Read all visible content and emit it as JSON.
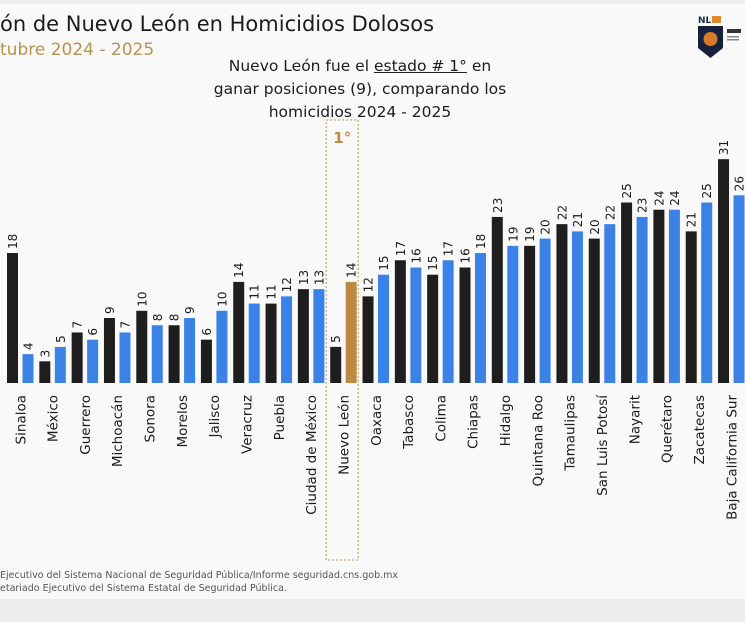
{
  "header": {
    "title": "ón de Nuevo León en Homicidios Dolosos",
    "subtitle": "tubre 2024 - 2025",
    "note_part1": "Nuevo León fue el ",
    "note_bold1": "estado # 1°",
    "note_part2": "  en ganar posiciones (9), comparando los homicidios 2024 - 2025"
  },
  "logo": {
    "text": "NL"
  },
  "highlight": {
    "label": "1°",
    "state": "Nuevo León"
  },
  "sources": [
    "Ejecutivo del Sistema Nacional de Seguridad Pública/Informe seguridad.cns.gob.mx",
    "etariado Ejecutivo del Sistema Estatal de Seguridad Pública."
  ],
  "chart_data": {
    "type": "bar",
    "categories": [
      "Sinaloa",
      "México",
      "Guerrero",
      "Michoacán",
      "Sonora",
      "Morelos",
      "Jalisco",
      "Veracruz",
      "Puebla",
      "Ciudad de México",
      "Nuevo León",
      "Oaxaca",
      "Tabasco",
      "Colima",
      "Chiapas",
      "Hidalgo",
      "Quintana Roo",
      "Tamaulipas",
      "San Luis Potosí",
      "Nayarit",
      "Querétaro",
      "Zacatecas",
      "Baja California Sur"
    ],
    "series": [
      {
        "values": [
          18,
          3,
          7,
          9,
          10,
          8,
          6,
          14,
          11,
          13,
          5,
          12,
          17,
          15,
          16,
          23,
          19,
          22,
          20,
          25,
          24,
          21,
          31
        ],
        "color": "#1e1e1e"
      },
      {
        "values": [
          4,
          5,
          6,
          7,
          8,
          9,
          10,
          11,
          12,
          13,
          14,
          15,
          16,
          17,
          18,
          19,
          20,
          21,
          22,
          23,
          24,
          25,
          26
        ],
        "color": "#3b82e6"
      }
    ],
    "highlight_color": "#bf8a3e",
    "ylim": [
      0,
      31
    ],
    "grid": false,
    "legend": "none"
  }
}
